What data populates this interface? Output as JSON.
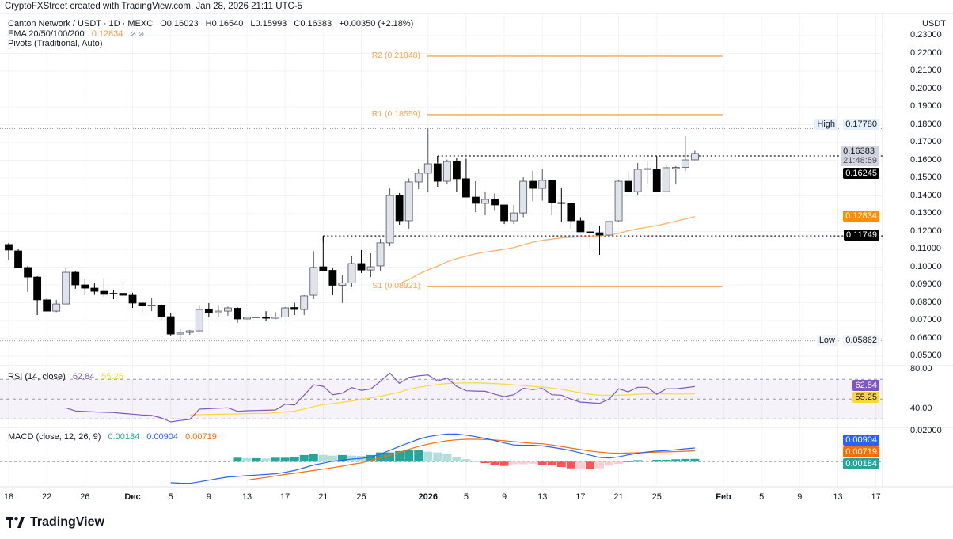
{
  "header": {
    "attribution": "CryptoFXStreet created with TradingView.com, Jan 28, 2026 21:11 UTC-5"
  },
  "legend": {
    "symbol": "Canton Network / USDT · 1D · MEXC",
    "open": "O0.16023",
    "high": "H0.16540",
    "low": "L0.15993",
    "close": "C0.16383",
    "change": "+0.00350 (+2.18%)",
    "ema_label": "EMA 20/50/100/200",
    "ema_value": "0.12834",
    "ema_hidden": "⊘ ⊘",
    "pivots_label": "Pivots (Traditional, Auto)",
    "rsi_label": "RSI (14, close)",
    "rsi_value": "62.84",
    "rsi_ma_value": "55.25",
    "macd_label": "MACD (close, 12, 26, 9)",
    "macd_hist_value": "0.00184",
    "macd_value": "0.00904",
    "macd_signal_value": "0.00719"
  },
  "axis": {
    "currency": "USDT",
    "price_ticks": [
      "0.23000",
      "0.22000",
      "0.21000",
      "0.20000",
      "0.19000",
      "0.18000",
      "0.17000",
      "0.16000",
      "0.15000",
      "0.14000",
      "0.13000",
      "0.12000",
      "0.11000",
      "0.10000",
      "0.09000",
      "0.08000",
      "0.07000",
      "0.06000",
      "0.05000"
    ],
    "rsi_ticks": [
      "80.00",
      "40.00"
    ],
    "macd_ticks": [
      "0.02000"
    ],
    "date_labels": [
      {
        "t": "18",
        "d": "2025-11-18"
      },
      {
        "t": "22",
        "d": "2025-11-22"
      },
      {
        "t": "26",
        "d": "2025-11-26"
      },
      {
        "t": "Dec",
        "d": "2025-12-01"
      },
      {
        "t": "5",
        "d": "2025-12-05"
      },
      {
        "t": "9",
        "d": "2025-12-09"
      },
      {
        "t": "13",
        "d": "2025-12-13"
      },
      {
        "t": "17",
        "d": "2025-12-17"
      },
      {
        "t": "21",
        "d": "2025-12-21"
      },
      {
        "t": "25",
        "d": "2025-12-25"
      },
      {
        "t": "2026",
        "d": "2026-01-01"
      },
      {
        "t": "5",
        "d": "2026-01-05"
      },
      {
        "t": "9",
        "d": "2026-01-09"
      },
      {
        "t": "13",
        "d": "2026-01-13"
      },
      {
        "t": "17",
        "d": "2026-01-17"
      },
      {
        "t": "21",
        "d": "2026-01-21"
      },
      {
        "t": "25",
        "d": "2026-01-25"
      },
      {
        "t": "Feb",
        "d": "2026-02-01"
      },
      {
        "t": "5",
        "d": "2026-02-05"
      },
      {
        "t": "9",
        "d": "2026-02-09"
      },
      {
        "t": "13",
        "d": "2026-02-13"
      },
      {
        "t": "17",
        "d": "2026-02-17"
      }
    ]
  },
  "price_tags": {
    "high_label": "High",
    "high_value": "0.17780",
    "last_value": "0.16383",
    "countdown": "21:48:59",
    "level_upper": "0.16245",
    "ema_value": "0.12834",
    "level_lower": "0.11749",
    "low_label": "Low",
    "low_value": "0.05862",
    "rsi_value": "62.84",
    "rsi_ma_value": "55.25",
    "macd_value": "0.00904",
    "macd_signal_value": "0.00719",
    "macd_hist_value": "0.00184"
  },
  "colors": {
    "up_fill": "#e0e3eb",
    "down_fill": "#000000",
    "pivot": "#f7a54a",
    "ema": "#ffb26b",
    "rsi": "#7e57c2",
    "rsi_ma": "#fdd835",
    "macd": "#2962ff",
    "signal": "#ff6d00",
    "hist_up_strong": "#26a69a",
    "hist_up_weak": "#b2dfdb",
    "hist_down_strong": "#ff5252",
    "hist_down_weak": "#ffcdd2"
  },
  "footer": {
    "brand": "TradingView"
  },
  "chart_data": {
    "type": "candlestick",
    "ylim": [
      0.05,
      0.23
    ],
    "pivots": [
      {
        "label": "R2 (0.21848)",
        "value": 0.21848
      },
      {
        "label": "R1 (0.18559)",
        "value": 0.18559
      },
      {
        "label": "S1 (0.08921)",
        "value": 0.08921
      }
    ],
    "levels": {
      "high": 0.1778,
      "low": 0.05862,
      "upper": 0.16245,
      "lower": 0.11749
    },
    "candles": [
      [
        "2025-11-18",
        0.1127,
        0.1136,
        0.1038,
        0.1096
      ],
      [
        "2025-11-19",
        0.1091,
        0.1104,
        0.0998,
        0.0998
      ],
      [
        "2025-11-20",
        0.0998,
        0.1007,
        0.086,
        0.0944
      ],
      [
        "2025-11-21",
        0.0944,
        0.0949,
        0.0731,
        0.0816
      ],
      [
        "2025-11-22",
        0.0816,
        0.0824,
        0.0751,
        0.0753
      ],
      [
        "2025-11-23",
        0.0753,
        0.0816,
        0.0747,
        0.0793
      ],
      [
        "2025-11-24",
        0.0793,
        0.0993,
        0.0791,
        0.0971
      ],
      [
        "2025-11-25",
        0.0971,
        0.0976,
        0.0878,
        0.09
      ],
      [
        "2025-11-26",
        0.09,
        0.0931,
        0.0842,
        0.0882
      ],
      [
        "2025-11-27",
        0.0882,
        0.0913,
        0.0844,
        0.0864
      ],
      [
        "2025-11-28",
        0.0864,
        0.0936,
        0.0833,
        0.0847
      ],
      [
        "2025-11-29",
        0.0853,
        0.0873,
        0.082,
        0.0849
      ],
      [
        "2025-11-30",
        0.0853,
        0.0927,
        0.0844,
        0.0842
      ],
      [
        "2025-12-01",
        0.0842,
        0.0856,
        0.0771,
        0.0798
      ],
      [
        "2025-12-02",
        0.0798,
        0.0802,
        0.0731,
        0.0784
      ],
      [
        "2025-12-03",
        0.0784,
        0.0829,
        0.0753,
        0.0787
      ],
      [
        "2025-12-04",
        0.0787,
        0.0793,
        0.0696,
        0.0722
      ],
      [
        "2025-12-05",
        0.0722,
        0.074,
        0.0616,
        0.0624
      ],
      [
        "2025-12-06",
        0.0624,
        0.0651,
        0.0589,
        0.0633
      ],
      [
        "2025-12-07",
        0.0633,
        0.0647,
        0.062,
        0.0642
      ],
      [
        "2025-12-08",
        0.0642,
        0.0787,
        0.0633,
        0.0762
      ],
      [
        "2025-12-09",
        0.0762,
        0.0798,
        0.0718,
        0.0744
      ],
      [
        "2025-12-10",
        0.0744,
        0.0787,
        0.0718,
        0.0753
      ],
      [
        "2025-12-11",
        0.0753,
        0.0778,
        0.0727,
        0.0771
      ],
      [
        "2025-12-12",
        0.0769,
        0.0776,
        0.0687,
        0.0709
      ],
      [
        "2025-12-13",
        0.0709,
        0.072,
        0.0707,
        0.0718
      ],
      [
        "2025-12-14",
        0.0718,
        0.0722,
        0.0713,
        0.072
      ],
      [
        "2025-12-15",
        0.072,
        0.0753,
        0.0698,
        0.0713
      ],
      [
        "2025-12-16",
        0.0713,
        0.0747,
        0.0707,
        0.072
      ],
      [
        "2025-12-17",
        0.072,
        0.0776,
        0.0718,
        0.0771
      ],
      [
        "2025-12-18",
        0.0773,
        0.08,
        0.0731,
        0.0762
      ],
      [
        "2025-12-19",
        0.0762,
        0.0842,
        0.0731,
        0.0838
      ],
      [
        "2025-12-20",
        0.0842,
        0.1089,
        0.082,
        0.0998
      ],
      [
        "2025-12-21",
        0.1002,
        0.1175,
        0.0976,
        0.098
      ],
      [
        "2025-12-22",
        0.0982,
        0.0993,
        0.0842,
        0.0898
      ],
      [
        "2025-12-23",
        0.0898,
        0.0953,
        0.0798,
        0.0911
      ],
      [
        "2025-12-24",
        0.0911,
        0.106,
        0.0891,
        0.102
      ],
      [
        "2025-12-25",
        0.102,
        0.1096,
        0.0967,
        0.0984
      ],
      [
        "2025-12-26",
        0.0984,
        0.1078,
        0.0944,
        0.1002
      ],
      [
        "2025-12-27",
        0.1007,
        0.1158,
        0.098,
        0.1136
      ],
      [
        "2025-12-28",
        0.1136,
        0.1442,
        0.1118,
        0.1402
      ],
      [
        "2025-12-29",
        0.1402,
        0.1416,
        0.1238,
        0.126
      ],
      [
        "2025-12-30",
        0.126,
        0.1498,
        0.1216,
        0.1478
      ],
      [
        "2025-12-31",
        0.1478,
        0.1549,
        0.1438,
        0.1527
      ],
      [
        "2026-01-01",
        0.1527,
        0.1778,
        0.142,
        0.158
      ],
      [
        "2026-01-02",
        0.158,
        0.1624,
        0.1451,
        0.1482
      ],
      [
        "2026-01-03",
        0.1482,
        0.1604,
        0.1464,
        0.1593
      ],
      [
        "2026-01-04",
        0.1593,
        0.1611,
        0.1424,
        0.1496
      ],
      [
        "2026-01-05",
        0.1496,
        0.1609,
        0.1393,
        0.1393
      ],
      [
        "2026-01-06",
        0.1393,
        0.1482,
        0.1309,
        0.1358
      ],
      [
        "2026-01-07",
        0.1358,
        0.1424,
        0.1291,
        0.138
      ],
      [
        "2026-01-08",
        0.138,
        0.1413,
        0.132,
        0.1349
      ],
      [
        "2026-01-09",
        0.1349,
        0.1349,
        0.1242,
        0.126
      ],
      [
        "2026-01-10",
        0.126,
        0.1349,
        0.1242,
        0.1304
      ],
      [
        "2026-01-11",
        0.1304,
        0.1504,
        0.128,
        0.1482
      ],
      [
        "2026-01-12",
        0.1482,
        0.154,
        0.1369,
        0.1442
      ],
      [
        "2026-01-13",
        0.1442,
        0.1549,
        0.1373,
        0.1487
      ],
      [
        "2026-01-14",
        0.1487,
        0.1487,
        0.1291,
        0.1362
      ],
      [
        "2026-01-15",
        0.1362,
        0.1442,
        0.1253,
        0.1358
      ],
      [
        "2026-01-16",
        0.1358,
        0.1358,
        0.1216,
        0.126
      ],
      [
        "2026-01-17",
        0.126,
        0.128,
        0.1198,
        0.1198
      ],
      [
        "2026-01-18",
        0.1198,
        0.1233,
        0.11,
        0.1193
      ],
      [
        "2026-01-19",
        0.1193,
        0.1229,
        0.1069,
        0.118
      ],
      [
        "2026-01-20",
        0.118,
        0.1318,
        0.1162,
        0.1256
      ],
      [
        "2026-01-21",
        0.126,
        0.1487,
        0.1256,
        0.1482
      ],
      [
        "2026-01-22",
        0.1482,
        0.154,
        0.1427,
        0.1424
      ],
      [
        "2026-01-23",
        0.1424,
        0.1584,
        0.1407,
        0.1549
      ],
      [
        "2026-01-24",
        0.1553,
        0.1593,
        0.1464,
        0.1553
      ],
      [
        "2026-01-25",
        0.1549,
        0.1624,
        0.1424,
        0.1424
      ],
      [
        "2026-01-26",
        0.1424,
        0.1576,
        0.1424,
        0.1558
      ],
      [
        "2026-01-27",
        0.1553,
        0.1567,
        0.1464,
        0.156
      ],
      [
        "2026-01-28",
        0.156,
        0.1736,
        0.1538,
        0.1602
      ],
      [
        "2026-01-29",
        0.16023,
        0.1654,
        0.15993,
        0.16383
      ]
    ],
    "ema": [
      null,
      null,
      null,
      null,
      null,
      null,
      null,
      null,
      null,
      null,
      null,
      null,
      null,
      null,
      null,
      null,
      null,
      null,
      null,
      null,
      null,
      null,
      null,
      null,
      null,
      null,
      null,
      null,
      null,
      null,
      null,
      null,
      null,
      null,
      null,
      null,
      null,
      null,
      null,
      null,
      null,
      0.0908,
      0.093,
      0.096,
      0.0985,
      0.1005,
      0.103,
      0.1048,
      0.1062,
      0.1075,
      0.1085,
      0.1092,
      0.11,
      0.111,
      0.1125,
      0.114,
      0.115,
      0.1157,
      0.1164,
      0.1167,
      0.117,
      0.1171,
      0.1175,
      0.118,
      0.119,
      0.1204,
      0.1215,
      0.1224,
      0.1233,
      0.1245,
      0.1258,
      0.127,
      0.12834
    ],
    "rsi": {
      "ylim": [
        20,
        85
      ],
      "bands": [
        70,
        50,
        30
      ],
      "rsi": [
        null,
        null,
        null,
        null,
        null,
        null,
        41.2,
        38,
        37.5,
        37,
        36.7,
        36.4,
        35.5,
        34.8,
        34,
        33.5,
        31,
        27,
        28.5,
        29.5,
        39.8,
        40.3,
        40.8,
        41.2,
        37.7,
        38.2,
        38.5,
        38.7,
        39,
        44.9,
        44,
        54,
        64.6,
        63,
        54.5,
        56,
        61.7,
        59,
        60.3,
        68,
        76.4,
        66,
        72,
        73.5,
        74.5,
        68.4,
        71.4,
        63,
        58.5,
        58.2,
        57.9,
        55,
        52.6,
        54.5,
        61,
        59.7,
        60.8,
        54.5,
        54,
        50,
        47,
        46.3,
        45.7,
        50,
        60.5,
        57.4,
        62,
        62,
        55,
        60.5,
        60.5,
        61.5,
        62.84
      ],
      "ma": [
        null,
        null,
        null,
        null,
        null,
        null,
        null,
        null,
        null,
        null,
        null,
        null,
        null,
        null,
        null,
        null,
        null,
        null,
        null,
        34,
        34.2,
        34.5,
        34.7,
        34.9,
        35,
        35.3,
        35.5,
        35.7,
        36.3,
        37,
        37.8,
        40,
        42.5,
        44.4,
        45.5,
        46.7,
        48.2,
        49.8,
        51.3,
        53,
        55,
        57,
        60,
        62,
        63.5,
        64.8,
        65.8,
        66.2,
        66.4,
        66.5,
        66.2,
        65.8,
        65.2,
        64.5,
        63.8,
        63,
        62.2,
        61.2,
        60,
        58.2,
        56.5,
        55,
        54,
        54,
        54,
        54.3,
        55,
        55.3,
        55.3,
        55.3,
        55.2,
        55.2,
        55.25
      ]
    },
    "macd": {
      "macd": [
        null,
        null,
        null,
        null,
        null,
        null,
        null,
        null,
        null,
        null,
        null,
        null,
        null,
        null,
        null,
        null,
        null,
        -0.0139,
        -0.0142,
        -0.0143,
        -0.0133,
        -0.0122,
        -0.0111,
        -0.0101,
        -0.0097,
        -0.0092,
        -0.0088,
        -0.0084,
        -0.008,
        -0.007,
        -0.0058,
        -0.004,
        -0.0022,
        -0.001,
        0.0003,
        0.001,
        0.0017,
        0.0022,
        0.0031,
        0.005,
        0.0075,
        0.01,
        0.0125,
        0.0148,
        0.0165,
        0.0175,
        0.0182,
        0.0182,
        0.0175,
        0.0165,
        0.0153,
        0.014,
        0.0123,
        0.011,
        0.0108,
        0.0108,
        0.0104,
        0.0095,
        0.0085,
        0.0073,
        0.0058,
        0.0043,
        0.0028,
        0.0024,
        0.0032,
        0.0045,
        0.0056,
        0.0064,
        0.007,
        0.0073,
        0.0079,
        0.0085,
        0.00904
      ],
      "signal": [
        null,
        null,
        null,
        null,
        null,
        null,
        null,
        null,
        null,
        null,
        null,
        null,
        null,
        null,
        null,
        null,
        null,
        null,
        null,
        null,
        null,
        null,
        null,
        null,
        null,
        -0.0122,
        -0.0113,
        -0.0104,
        -0.0094,
        -0.0084,
        -0.0076,
        -0.0067,
        -0.0058,
        -0.0049,
        -0.0039,
        -0.0029,
        -0.0017,
        -0.0008,
        0.0008,
        0.0024,
        0.0042,
        0.0062,
        0.0082,
        0.01,
        0.0116,
        0.0128,
        0.0138,
        0.0144,
        0.0148,
        0.0148,
        0.0146,
        0.0143,
        0.0138,
        0.0132,
        0.0126,
        0.0121,
        0.0118,
        0.011,
        0.01,
        0.009,
        0.008,
        0.007,
        0.0063,
        0.0058,
        0.0056,
        0.0057,
        0.0059,
        0.0061,
        0.0063,
        0.0065,
        0.0067,
        0.0069,
        0.00719
      ],
      "histogram": [
        null,
        null,
        null,
        null,
        null,
        null,
        null,
        null,
        null,
        null,
        null,
        null,
        null,
        null,
        null,
        null,
        null,
        null,
        null,
        null,
        null,
        null,
        null,
        null,
        0.0026,
        0.0023,
        0.0023,
        0.0021,
        0.0026,
        0.0026,
        0.0031,
        0.0044,
        0.005,
        0.0045,
        0.004,
        0.0044,
        0.004,
        0.0038,
        0.0044,
        0.0061,
        0.0061,
        0.007,
        0.0075,
        0.0075,
        0.0066,
        0.0061,
        0.0052,
        0.0031,
        0.0017,
        0.0003,
        -0.0009,
        -0.0021,
        -0.0028,
        -0.0017,
        -0.0017,
        -0.0014,
        -0.0021,
        -0.0023,
        -0.0035,
        -0.0044,
        -0.0044,
        -0.0049,
        -0.0044,
        -0.0026,
        -0.0014,
        0.0003,
        0.001,
        0.0005,
        0.0012,
        0.0012,
        0.0016,
        0.0018,
        0.00184
      ]
    }
  }
}
